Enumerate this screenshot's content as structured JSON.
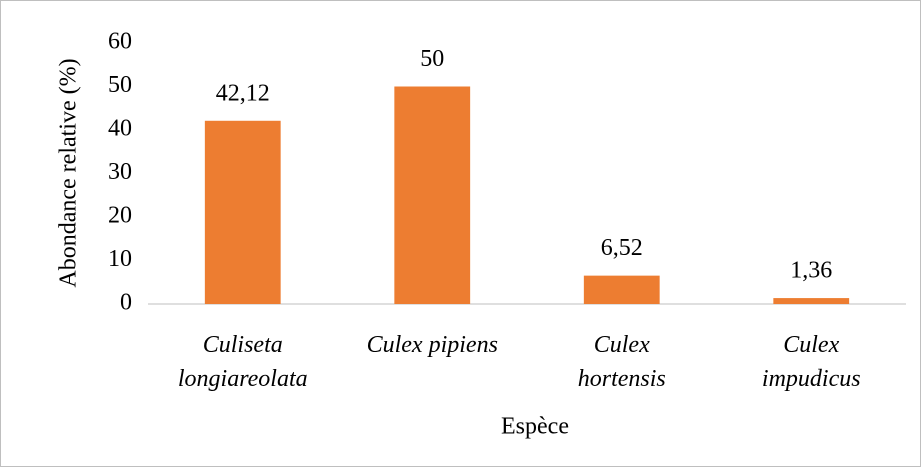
{
  "chart_data": {
    "type": "bar",
    "categories": [
      "Culiseta\nlongiareolata",
      "Culex pipiens",
      "Culex\nhortensis",
      "Culex\nimpudicus"
    ],
    "values": [
      42.12,
      50,
      6.52,
      1.36
    ],
    "value_labels": [
      "42,12",
      "50",
      "6,52",
      "1,36"
    ],
    "color": "#ed7d31",
    "xlabel": "Espèce",
    "ylabel": "Abondance relative (%)",
    "ylim": [
      0,
      60
    ],
    "yticks": [
      0,
      10,
      20,
      30,
      40,
      50,
      60
    ],
    "grid": false
  }
}
